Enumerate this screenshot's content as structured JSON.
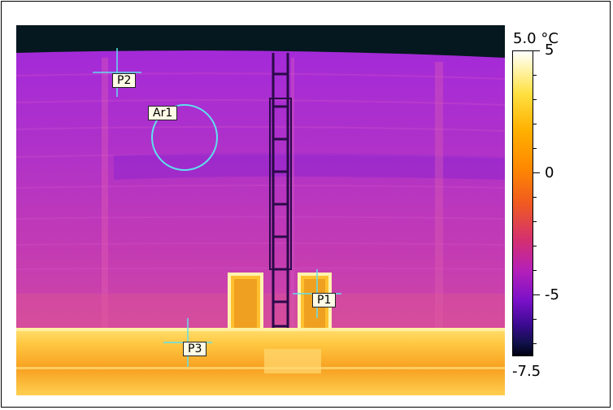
{
  "image": {
    "subject": "thermal-image",
    "palette": "iron"
  },
  "markers": {
    "p1": {
      "label": "P1"
    },
    "p2": {
      "label": "P2"
    },
    "p3": {
      "label": "P3"
    },
    "ar1": {
      "label": "Ar1"
    }
  },
  "scale": {
    "max_label": "5.0 °C",
    "min_label": "-7.5",
    "ticks": [
      "5",
      "0",
      "-5"
    ],
    "max_value": 5.0,
    "min_value": -7.5,
    "unit": "°C"
  },
  "colors": {
    "marker_line": "#5fe0ee",
    "label_bg": "#fffbe6"
  }
}
